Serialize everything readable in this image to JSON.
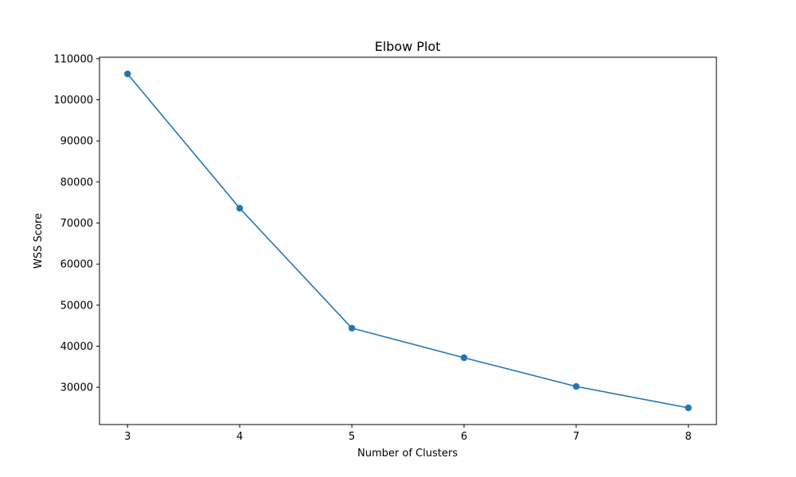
{
  "chart_data": {
    "type": "line",
    "title": "Elbow Plot",
    "xlabel": "Number of Clusters",
    "ylabel": "WSS Score",
    "x": [
      3,
      4,
      5,
      6,
      7,
      8
    ],
    "series": [
      {
        "values": [
          106300,
          73600,
          44400,
          37200,
          30200,
          25000
        ],
        "color": "#1f77b4",
        "marker": "circle"
      }
    ],
    "xticks": [
      "3",
      "4",
      "5",
      "6",
      "7",
      "8"
    ],
    "yticks": [
      "30000",
      "40000",
      "50000",
      "60000",
      "70000",
      "80000",
      "90000",
      "100000",
      "110000"
    ],
    "xlim": [
      2.75,
      8.25
    ],
    "ylim": [
      20935,
      110365
    ],
    "grid": false,
    "legend": "none"
  }
}
